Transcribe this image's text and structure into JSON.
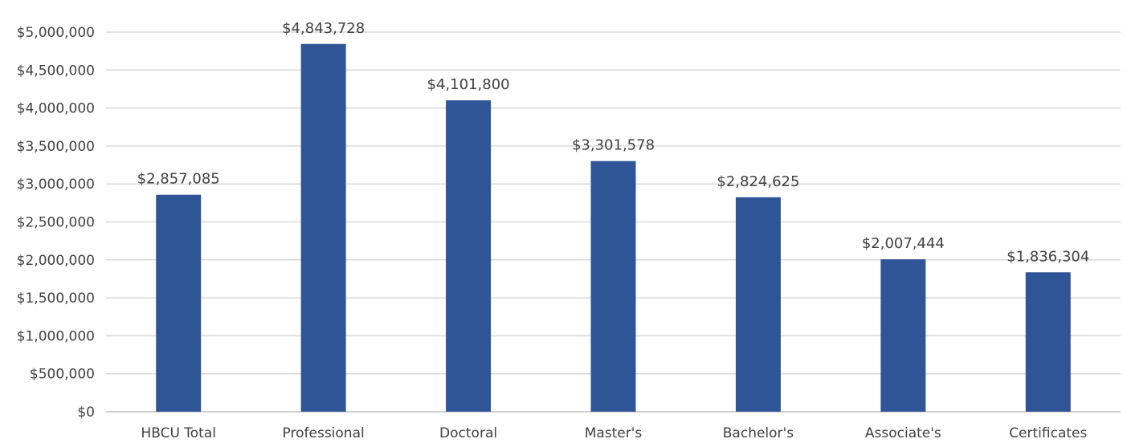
{
  "chart_data": {
    "type": "bar",
    "title": "",
    "xlabel": "",
    "ylabel": "",
    "categories": [
      "HBCU Total",
      "Professional",
      "Doctoral",
      "Master's",
      "Bachelor's",
      "Associate's",
      "Certificates"
    ],
    "values": [
      2857085,
      4843728,
      4101800,
      3301578,
      2824625,
      2007444,
      1836304
    ],
    "data_labels": [
      "$2,857,085",
      "$4,843,728",
      "$4,101,800",
      "$3,301,578",
      "$2,824,625",
      "$2,007,444",
      "$1,836,304"
    ],
    "ylim": [
      0,
      5000000
    ],
    "yticks": [
      0,
      500000,
      1000000,
      1500000,
      2000000,
      2500000,
      3000000,
      3500000,
      4000000,
      4500000,
      5000000
    ],
    "ytick_labels": [
      "$0",
      "$500,000",
      "$1,000,000",
      "$1,500,000",
      "$2,000,000",
      "$2,500,000",
      "$3,000,000",
      "$3,500,000",
      "$4,000,000",
      "$4,500,000",
      "$5,000,000"
    ],
    "grid": true,
    "legend": "none",
    "bar_color": "#2f5597"
  }
}
